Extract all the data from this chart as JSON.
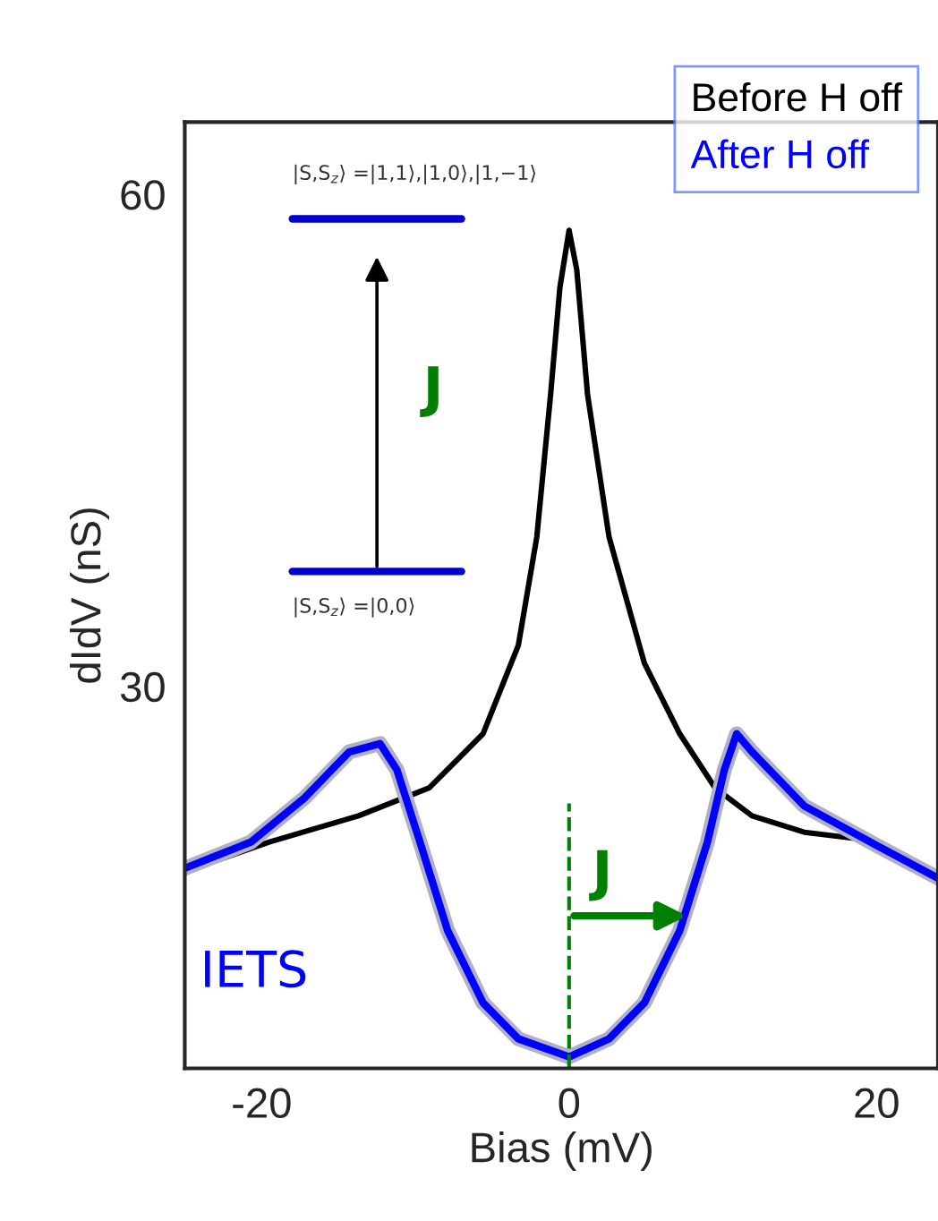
{
  "chart_data": {
    "type": "line",
    "xlabel": "Bias (mV)",
    "ylabel": "dIdV (nS)",
    "xlim": [
      -25,
      24
    ],
    "ylim": [
      6.7,
      64.4
    ],
    "xticks": [
      -20,
      0,
      20
    ],
    "yticks": [
      30,
      60
    ],
    "legend": "top right",
    "grid": false,
    "series": [
      {
        "name": "Before H off",
        "color": "#000000",
        "x": [
          -25,
          -19.5,
          -13.7,
          -9.1,
          -5.6,
          -3.3,
          -2.1,
          -1.2,
          -0.6,
          0,
          0.5,
          1.2,
          2.6,
          4.9,
          7.2,
          9.5,
          11.9,
          15.3,
          18.8,
          24
        ],
        "values": [
          18.7,
          20.5,
          22.1,
          23.8,
          27.1,
          32.5,
          39.1,
          47.8,
          54.3,
          57.8,
          55.4,
          47.8,
          39.1,
          31.4,
          27.1,
          23.8,
          22.1,
          21.1,
          20.7,
          18.3
        ]
      },
      {
        "name": "After H off",
        "color": "#0000ff",
        "x": [
          -25,
          -20.7,
          -17.2,
          -14.3,
          -12.3,
          -11.2,
          -9.7,
          -7.9,
          -5.6,
          -3.3,
          0,
          2.6,
          4.9,
          7.2,
          9.0,
          10.1,
          10.9,
          11.9,
          15.3,
          20,
          24
        ],
        "values": [
          18.9,
          20.5,
          23.2,
          26.0,
          26.5,
          24.9,
          20.5,
          15.1,
          10.7,
          8.5,
          7.4,
          8.5,
          10.7,
          15.1,
          20.5,
          24.9,
          27.1,
          26.0,
          22.7,
          20.3,
          18.3
        ]
      }
    ],
    "ref_lines": [
      {
        "axis": "x",
        "value": 0,
        "color": "#008000",
        "line_style": "dashed"
      }
    ],
    "annotations": [
      "|S,S$_{z}$⟩ =|1,1⟩,|1,0⟩,|1,−1⟩",
      "|S,S$_{z}$⟩ =|0,0⟩",
      "J",
      "IETS",
      "J"
    ]
  }
}
